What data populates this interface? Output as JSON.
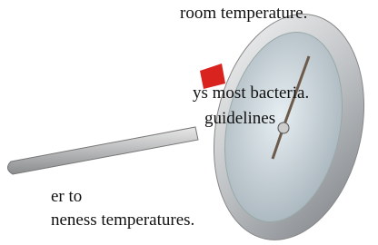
{
  "text_fragments": [
    "room temperature.",
    "ys most bacteria.",
    "guidelines",
    "er to",
    "neness temperatures."
  ]
}
